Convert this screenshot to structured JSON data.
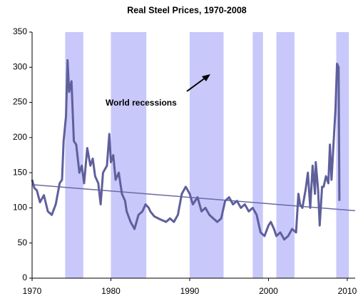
{
  "chart_data": {
    "type": "line",
    "title": "Real Steel Prices, 1970-2008",
    "annotation": "World recessions",
    "xlim": [
      1970,
      2011
    ],
    "ylim": [
      0,
      350
    ],
    "xticks": [
      1970,
      1980,
      1990,
      2000,
      2010
    ],
    "yticks": [
      0,
      50,
      100,
      150,
      200,
      250,
      300,
      350
    ],
    "grid": false,
    "recession_color": "#c8c8fa",
    "recessions": [
      [
        1974.2,
        1976.5
      ],
      [
        1980,
        1984.5
      ],
      [
        1990,
        1994.3
      ],
      [
        1998,
        1999.3
      ],
      [
        2001,
        2003.3
      ],
      [
        2008.6,
        2010.2
      ]
    ],
    "trend": {
      "color": "#6a6aa6",
      "x": [
        1970,
        2011
      ],
      "values": [
        133,
        96
      ]
    },
    "series": [
      {
        "color": "#5f5f9c",
        "x": [
          1970,
          1970.3,
          1970.6,
          1971,
          1971.5,
          1972,
          1972.5,
          1973,
          1973.5,
          1973.8,
          1974,
          1974.3,
          1974.5,
          1974.7,
          1975,
          1975.3,
          1975.6,
          1976,
          1976.3,
          1976.6,
          1977,
          1977.4,
          1977.7,
          1978,
          1978.4,
          1978.7,
          1979,
          1979.5,
          1979.8,
          1980,
          1980.3,
          1980.6,
          1981,
          1981.4,
          1981.8,
          1982,
          1982.5,
          1983,
          1983.5,
          1984,
          1984.4,
          1984.8,
          1985,
          1985.5,
          1986,
          1987,
          1987.5,
          1988,
          1988.5,
          1989,
          1989.5,
          1990,
          1990.4,
          1991,
          1991.5,
          1992,
          1992.5,
          1993,
          1993.5,
          1994,
          1994.5,
          1995,
          1995.5,
          1996,
          1996.5,
          1997,
          1997.5,
          1998,
          1998.5,
          1999,
          1999.5,
          2000,
          2000.3,
          2000.7,
          2001,
          2001.5,
          2002,
          2002.5,
          2003,
          2003.5,
          2003.8,
          2004,
          2004.3,
          2004.7,
          2005,
          2005.3,
          2005.6,
          2005.9,
          2006,
          2006.3,
          2006.5,
          2006.8,
          2007,
          2007.3,
          2007.6,
          2007.8,
          2008,
          2008.2,
          2008.5,
          2008.7,
          2008.9,
          2009
        ],
        "values": [
          140,
          128,
          125,
          108,
          118,
          95,
          90,
          105,
          135,
          140,
          195,
          230,
          310,
          265,
          280,
          195,
          190,
          150,
          160,
          135,
          185,
          160,
          170,
          145,
          135,
          105,
          150,
          160,
          205,
          165,
          175,
          140,
          150,
          120,
          110,
          95,
          80,
          70,
          90,
          95,
          105,
          100,
          95,
          88,
          85,
          80,
          85,
          80,
          90,
          120,
          130,
          120,
          105,
          115,
          95,
          100,
          90,
          85,
          80,
          85,
          110,
          115,
          105,
          110,
          100,
          105,
          95,
          100,
          90,
          65,
          60,
          75,
          80,
          70,
          60,
          65,
          55,
          60,
          70,
          65,
          120,
          105,
          100,
          125,
          150,
          100,
          160,
          120,
          165,
          125,
          75,
          130,
          130,
          145,
          135,
          190,
          140,
          180,
          240,
          305,
          300,
          110
        ]
      }
    ]
  }
}
